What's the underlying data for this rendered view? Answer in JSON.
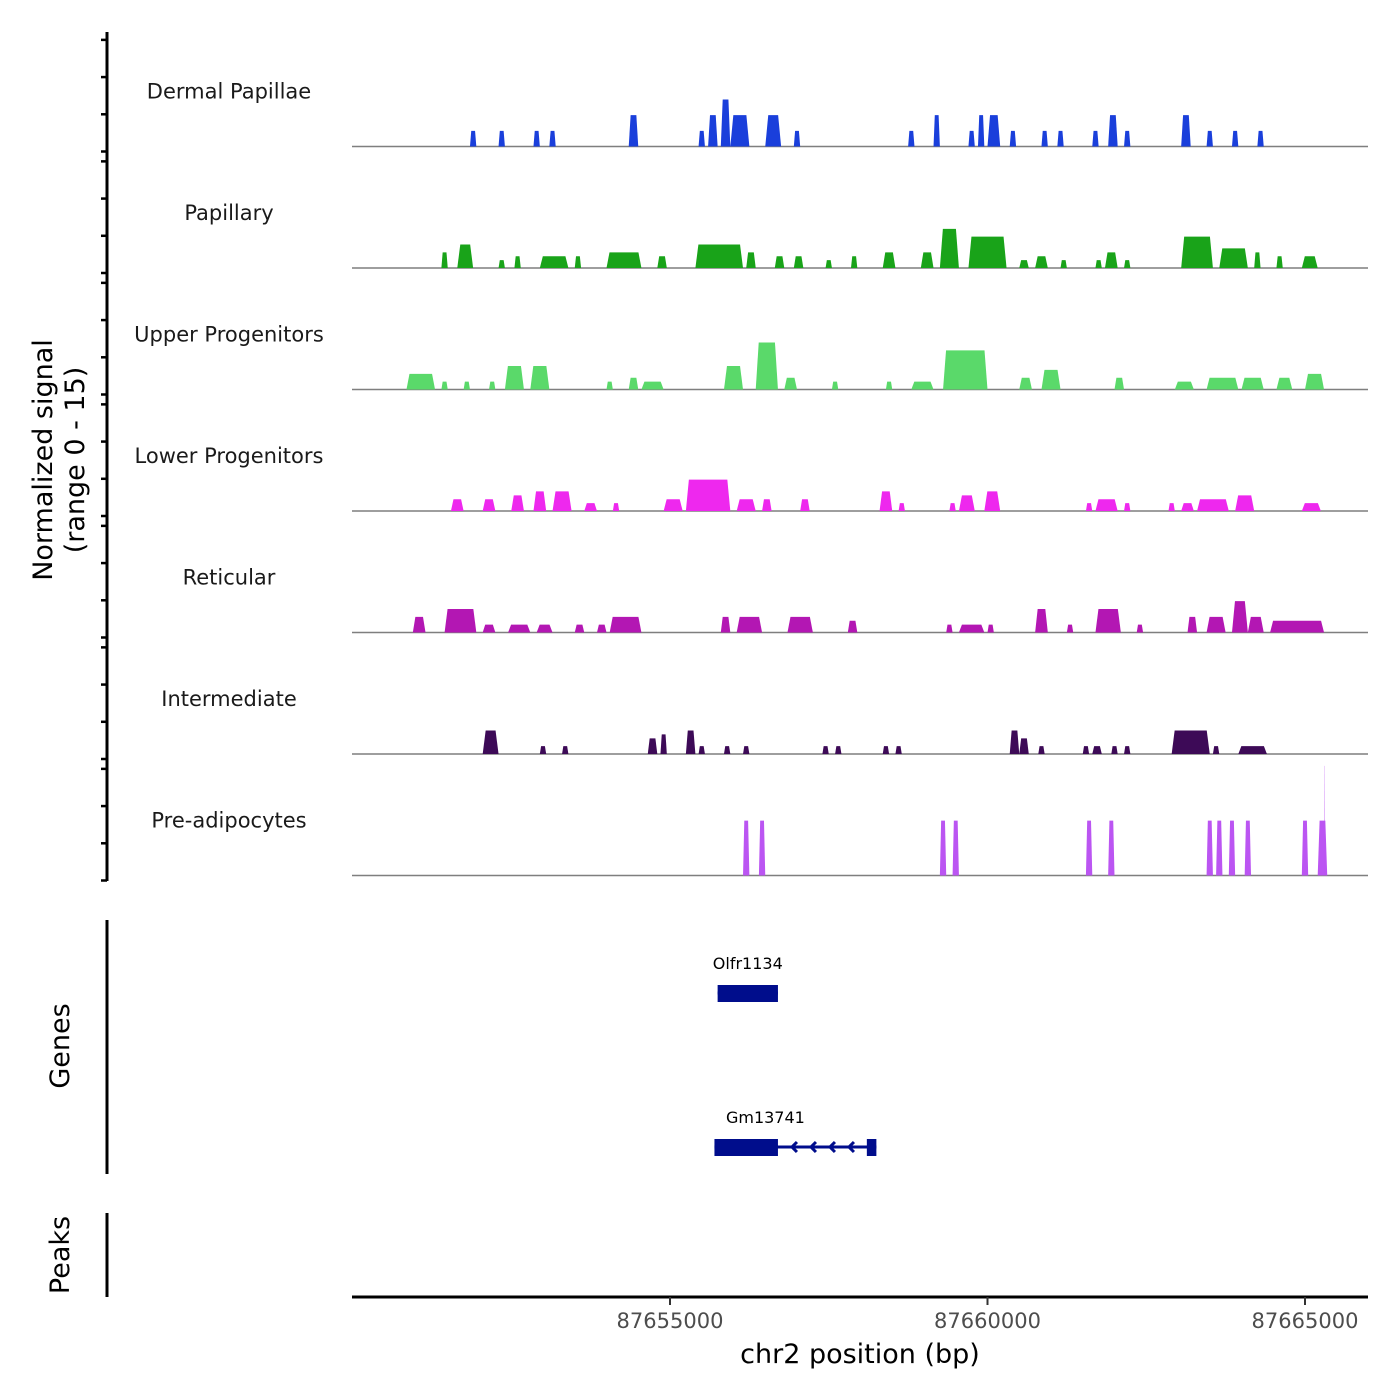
{
  "chart_data": {
    "type": "area",
    "title": "",
    "chromosome": "chr2",
    "xlabel": "chr2 position (bp)",
    "ylabel": "Normalized signal\n(range 0 - 15)",
    "ylabel_line1": "Normalized signal",
    "ylabel_line2": "(range 0 - 15)",
    "ylim": [
      0,
      15
    ],
    "xlim": [
      87650000,
      87666000
    ],
    "x_ticks": [
      87655000,
      87660000,
      87665000
    ],
    "x_tick_labels": [
      "87655000",
      "87660000",
      "87665000"
    ],
    "grid": false,
    "legend": "none",
    "tracks": [
      {
        "name": "Dermal Papillae",
        "color": "#1a3fdb",
        "peaks": [
          [
            87651850,
            87651950,
            2
          ],
          [
            87652300,
            87652400,
            2
          ],
          [
            87652850,
            87652950,
            2
          ],
          [
            87653100,
            87653200,
            2
          ],
          [
            87654350,
            87654500,
            4
          ],
          [
            87655450,
            87655550,
            2
          ],
          [
            87655600,
            87655750,
            4
          ],
          [
            87655800,
            87655950,
            6
          ],
          [
            87655950,
            87656250,
            4
          ],
          [
            87656500,
            87656750,
            4
          ],
          [
            87656950,
            87657050,
            2
          ],
          [
            87658750,
            87658850,
            2
          ],
          [
            87659150,
            87659250,
            4
          ],
          [
            87659700,
            87659800,
            2
          ],
          [
            87659850,
            87659950,
            4
          ],
          [
            87660000,
            87660200,
            4
          ],
          [
            87660350,
            87660450,
            2
          ],
          [
            87660850,
            87660950,
            2
          ],
          [
            87661100,
            87661200,
            2
          ],
          [
            87661650,
            87661750,
            2
          ],
          [
            87661900,
            87662050,
            4
          ],
          [
            87662150,
            87662250,
            2
          ],
          [
            87663050,
            87663200,
            4
          ],
          [
            87663450,
            87663550,
            2
          ],
          [
            87663850,
            87663950,
            2
          ],
          [
            87664250,
            87664350,
            2
          ]
        ]
      },
      {
        "name": "Papillary",
        "color": "#19a319",
        "peaks": [
          [
            87651400,
            87651500,
            2
          ],
          [
            87651650,
            87651900,
            3
          ],
          [
            87652300,
            87652400,
            1
          ],
          [
            87652550,
            87652650,
            1.5
          ],
          [
            87652950,
            87653400,
            1.5
          ],
          [
            87653500,
            87653600,
            1.5
          ],
          [
            87654000,
            87654550,
            2
          ],
          [
            87654800,
            87654950,
            1.5
          ],
          [
            87655400,
            87656150,
            3
          ],
          [
            87656200,
            87656350,
            2
          ],
          [
            87656650,
            87656800,
            1.5
          ],
          [
            87656950,
            87657100,
            1.5
          ],
          [
            87657450,
            87657550,
            1
          ],
          [
            87657850,
            87657950,
            1.5
          ],
          [
            87658350,
            87658550,
            2
          ],
          [
            87658950,
            87659150,
            2
          ],
          [
            87659250,
            87659550,
            5
          ],
          [
            87659700,
            87660300,
            4
          ],
          [
            87660500,
            87660650,
            1
          ],
          [
            87660750,
            87660950,
            1.5
          ],
          [
            87661150,
            87661250,
            1
          ],
          [
            87661700,
            87661800,
            1
          ],
          [
            87661850,
            87662050,
            2
          ],
          [
            87662150,
            87662250,
            1
          ],
          [
            87663050,
            87663550,
            4
          ],
          [
            87663650,
            87664100,
            2.5
          ],
          [
            87664200,
            87664300,
            2
          ],
          [
            87664550,
            87664650,
            1.5
          ],
          [
            87664950,
            87665200,
            1.5
          ]
        ]
      },
      {
        "name": "Upper Progenitors",
        "color": "#5ad96a",
        "peaks": [
          [
            87650850,
            87651300,
            2
          ],
          [
            87651400,
            87651500,
            1
          ],
          [
            87651750,
            87651850,
            1
          ],
          [
            87652150,
            87652250,
            1
          ],
          [
            87652400,
            87652700,
            3
          ],
          [
            87652800,
            87653100,
            3
          ],
          [
            87654000,
            87654100,
            1
          ],
          [
            87654350,
            87654500,
            1.5
          ],
          [
            87654550,
            87654900,
            1
          ],
          [
            87655850,
            87656150,
            3
          ],
          [
            87656350,
            87656700,
            6
          ],
          [
            87656800,
            87657000,
            1.5
          ],
          [
            87657550,
            87657650,
            1
          ],
          [
            87658400,
            87658500,
            1
          ],
          [
            87658800,
            87659150,
            1
          ],
          [
            87659300,
            87660000,
            5
          ],
          [
            87660500,
            87660700,
            1.5
          ],
          [
            87660850,
            87661150,
            2.5
          ],
          [
            87662000,
            87662150,
            1.5
          ],
          [
            87662950,
            87663250,
            1
          ],
          [
            87663450,
            87663950,
            1.5
          ],
          [
            87664000,
            87664350,
            1.5
          ],
          [
            87664550,
            87664800,
            1.5
          ],
          [
            87665000,
            87665300,
            2
          ]
        ]
      },
      {
        "name": "Lower Progenitors",
        "color": "#ee28ee",
        "peaks": [
          [
            87651550,
            87651750,
            1.5
          ],
          [
            87652050,
            87652250,
            1.5
          ],
          [
            87652500,
            87652700,
            2
          ],
          [
            87652850,
            87653050,
            2.5
          ],
          [
            87653150,
            87653450,
            2.5
          ],
          [
            87653650,
            87653850,
            1
          ],
          [
            87654100,
            87654200,
            1
          ],
          [
            87654900,
            87655200,
            1.5
          ],
          [
            87655250,
            87655950,
            4
          ],
          [
            87656050,
            87656350,
            1.5
          ],
          [
            87656450,
            87656600,
            1.5
          ],
          [
            87657050,
            87657200,
            1.5
          ],
          [
            87658300,
            87658500,
            2.5
          ],
          [
            87658600,
            87658700,
            1
          ],
          [
            87659400,
            87659500,
            1
          ],
          [
            87659550,
            87659800,
            2
          ],
          [
            87659950,
            87660200,
            2.5
          ],
          [
            87661550,
            87661650,
            1
          ],
          [
            87661700,
            87662050,
            1.5
          ],
          [
            87662150,
            87662250,
            1
          ],
          [
            87662850,
            87662950,
            1
          ],
          [
            87663050,
            87663250,
            1
          ],
          [
            87663300,
            87663800,
            1.5
          ],
          [
            87663900,
            87664200,
            2
          ],
          [
            87664950,
            87665250,
            1
          ]
        ]
      },
      {
        "name": "Reticular",
        "color": "#b317b3",
        "peaks": [
          [
            87650950,
            87651150,
            2
          ],
          [
            87651450,
            87651950,
            3
          ],
          [
            87652050,
            87652250,
            1
          ],
          [
            87652450,
            87652800,
            1
          ],
          [
            87652900,
            87653150,
            1
          ],
          [
            87653500,
            87653650,
            1
          ],
          [
            87653850,
            87654000,
            1
          ],
          [
            87654050,
            87654550,
            2
          ],
          [
            87655800,
            87655950,
            2
          ],
          [
            87656050,
            87656450,
            2
          ],
          [
            87656850,
            87657250,
            2
          ],
          [
            87657800,
            87657950,
            1.5
          ],
          [
            87659350,
            87659450,
            1
          ],
          [
            87659550,
            87659950,
            1
          ],
          [
            87660000,
            87660100,
            1
          ],
          [
            87660750,
            87660950,
            3
          ],
          [
            87661250,
            87661350,
            1
          ],
          [
            87661700,
            87662100,
            3
          ],
          [
            87662350,
            87662450,
            1
          ],
          [
            87663150,
            87663300,
            2
          ],
          [
            87663450,
            87663750,
            2
          ],
          [
            87663850,
            87664100,
            4
          ],
          [
            87664100,
            87664350,
            2
          ],
          [
            87664450,
            87665300,
            1.5
          ]
        ]
      },
      {
        "name": "Intermediate",
        "color": "#3d0a57",
        "peaks": [
          [
            87652050,
            87652300,
            3
          ],
          [
            87652950,
            87653050,
            1
          ],
          [
            87653300,
            87653400,
            1
          ],
          [
            87654650,
            87654800,
            2
          ],
          [
            87654850,
            87654950,
            2.5
          ],
          [
            87655250,
            87655400,
            3
          ],
          [
            87655450,
            87655550,
            1
          ],
          [
            87655850,
            87655950,
            1
          ],
          [
            87656150,
            87656250,
            1
          ],
          [
            87657400,
            87657500,
            1
          ],
          [
            87657600,
            87657700,
            1
          ],
          [
            87658350,
            87658450,
            1
          ],
          [
            87658550,
            87658650,
            1
          ],
          [
            87660350,
            87660500,
            3
          ],
          [
            87660500,
            87660650,
            2
          ],
          [
            87660800,
            87660900,
            1
          ],
          [
            87661500,
            87661600,
            1
          ],
          [
            87661650,
            87661800,
            1
          ],
          [
            87661950,
            87662050,
            1
          ],
          [
            87662150,
            87662250,
            1
          ],
          [
            87662900,
            87663500,
            3
          ],
          [
            87663550,
            87663650,
            1
          ],
          [
            87663950,
            87664400,
            1
          ]
        ]
      },
      {
        "name": "Pre-adipocytes",
        "color": "#bb55f2",
        "peaks": [
          [
            87656150,
            87656250,
            7
          ],
          [
            87656400,
            87656500,
            7
          ],
          [
            87659250,
            87659350,
            7
          ],
          [
            87659450,
            87659550,
            7
          ],
          [
            87661550,
            87661650,
            7
          ],
          [
            87661900,
            87662000,
            7
          ],
          [
            87663450,
            87663550,
            7
          ],
          [
            87663600,
            87663700,
            7
          ],
          [
            87663800,
            87663900,
            7
          ],
          [
            87664050,
            87664150,
            7
          ],
          [
            87664950,
            87665050,
            7
          ],
          [
            87665200,
            87665350,
            7
          ],
          [
            87665300,
            87665310,
            14
          ]
        ]
      }
    ],
    "genes": [
      {
        "name": "Olfr1134",
        "strand": "+",
        "start": 87655750,
        "end": 87656700,
        "exons": [
          [
            87655750,
            87656700
          ]
        ],
        "color": "#000d8c"
      },
      {
        "name": "Gm13741",
        "strand": "-",
        "start": 87655700,
        "end": 87658250,
        "exons": [
          [
            87655700,
            87656700
          ],
          [
            87658100,
            87658250
          ]
        ],
        "color": "#000d8c"
      }
    ],
    "panels": {
      "signal_label": "Normalized signal (range 0 - 15)",
      "genes_label": "Genes",
      "peaks_label": "Peaks"
    }
  }
}
